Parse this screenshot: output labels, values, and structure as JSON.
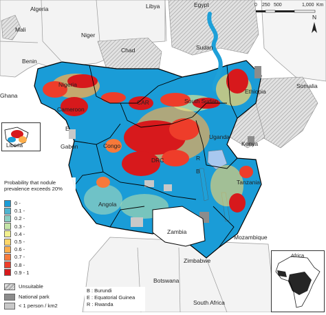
{
  "map": {
    "countries": {
      "algeria": "Algeria",
      "libya": "Libya",
      "egypt": "Egypt",
      "mali": "Mali",
      "niger": "Niger",
      "chad": "Chad",
      "sudan": "Sudan",
      "benin": "Benin",
      "ghana": "Ghana",
      "nigeria": "Nigeria",
      "ethiopia": "Ethiopia",
      "somalia": "Somalia",
      "car": "CAR",
      "south_sudan": "South Sudan",
      "cameroon": "Cameroon",
      "uganda": "Uganda",
      "kenya": "Kenya",
      "gabon": "Gabon",
      "congo": "Congo",
      "drc": "DRC",
      "tanzania": "Tanzania",
      "angola": "Angola",
      "zambia": "Zambia",
      "mozambique": "Mozambique",
      "zimbabwe": "Zimbabwe",
      "botswana": "Botswana",
      "south_africa": "South Africa",
      "liberia": "Liberia",
      "letter_e": "E",
      "letter_r": "R",
      "letter_b": "B"
    },
    "scale_bar": {
      "ticks": [
        "0",
        "250",
        "500",
        "1,000"
      ],
      "unit": "Km"
    },
    "north_label": "N",
    "inset_label": "Africa",
    "colors": {
      "water": "#1ea0d8",
      "land_no_data": "#ffffff",
      "unsuitable": "#c9c9c9",
      "national_park": "#8c8c8c",
      "sparse": "#c8c8c8",
      "border": "#000000"
    }
  },
  "legend": {
    "title": "Probability that nodule prevalence exceeds 20%",
    "classes": [
      {
        "label": "0 -",
        "color": "#1a9cd7"
      },
      {
        "label": "0.1 -",
        "color": "#4fb4cf"
      },
      {
        "label": "0.2 -",
        "color": "#8ccfc2"
      },
      {
        "label": "0.3 -",
        "color": "#c5e5a8"
      },
      {
        "label": "0.4 -",
        "color": "#f2f08e"
      },
      {
        "label": "0.5 -",
        "color": "#fed76a"
      },
      {
        "label": "0.6 -",
        "color": "#fdae4b"
      },
      {
        "label": "0.7 -",
        "color": "#f7793a"
      },
      {
        "label": "0.8 -",
        "color": "#ee3d2a"
      },
      {
        "label": "0.9 - 1",
        "color": "#d7191c"
      }
    ],
    "unsuitable": "Unsuitable",
    "national_park": "National park",
    "sparse": "< 1 person / km2"
  },
  "abbreviations": {
    "b": "B : Burundi",
    "e": "E : Equatorial Guinea",
    "r": "R : Rwanda"
  }
}
